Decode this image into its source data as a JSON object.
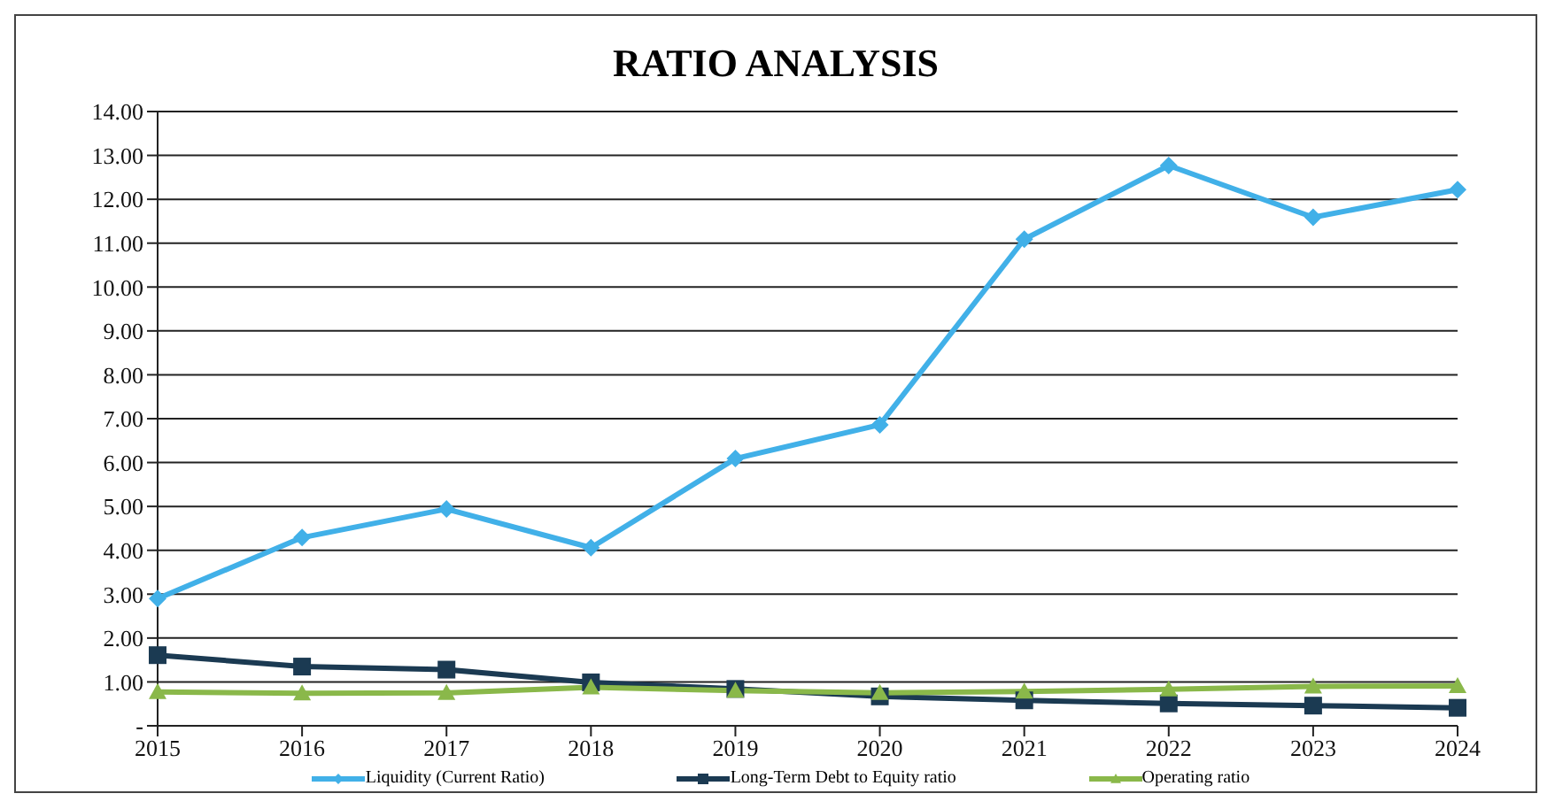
{
  "chart_data": {
    "type": "line",
    "title": "RATIO ANALYSIS",
    "categories": [
      "2015",
      "2016",
      "2017",
      "2018",
      "2019",
      "2020",
      "2021",
      "2022",
      "2023",
      "2024"
    ],
    "series": [
      {
        "name": "Liquidity (Current Ratio)",
        "color": "#41b0e8",
        "marker": "diamond",
        "values": [
          2.9,
          4.29,
          4.94,
          4.06,
          6.09,
          6.86,
          11.09,
          12.77,
          11.59,
          12.22
        ]
      },
      {
        "name": "Long-Term Debt to Equity ratio",
        "color": "#1b3a52",
        "marker": "square",
        "values": [
          1.61,
          1.35,
          1.28,
          0.99,
          0.84,
          0.67,
          0.58,
          0.51,
          0.46,
          0.41
        ]
      },
      {
        "name": "Operating ratio",
        "color": "#8ab84a",
        "marker": "triangle",
        "values": [
          0.77,
          0.74,
          0.75,
          0.88,
          0.8,
          0.75,
          0.78,
          0.83,
          0.9,
          0.91
        ]
      }
    ],
    "ylim": [
      0,
      14
    ],
    "yticks": [
      {
        "value": 0,
        "label": "-"
      },
      {
        "value": 1,
        "label": "1.00"
      },
      {
        "value": 2,
        "label": "2.00"
      },
      {
        "value": 3,
        "label": "3.00"
      },
      {
        "value": 4,
        "label": "4.00"
      },
      {
        "value": 5,
        "label": "5.00"
      },
      {
        "value": 6,
        "label": "6.00"
      },
      {
        "value": 7,
        "label": "7.00"
      },
      {
        "value": 8,
        "label": "8.00"
      },
      {
        "value": 9,
        "label": "9.00"
      },
      {
        "value": 10,
        "label": "10.00"
      },
      {
        "value": 11,
        "label": "11.00"
      },
      {
        "value": 12,
        "label": "12.00"
      },
      {
        "value": 13,
        "label": "13.00"
      },
      {
        "value": 14,
        "label": "14.00"
      }
    ],
    "grid": "y",
    "legend": "bottom",
    "line_style": "solid"
  }
}
